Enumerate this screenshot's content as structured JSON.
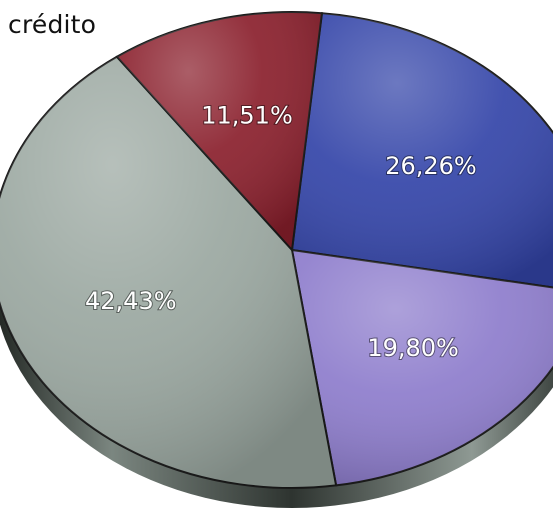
{
  "chart_data": {
    "type": "pie",
    "title": "crédito",
    "slices": [
      {
        "label": "26,26%",
        "value": 26.26,
        "color": "#3344a8"
      },
      {
        "label": "19,80%",
        "value": 19.8,
        "color": "#8d7ccc"
      },
      {
        "label": "42,43%",
        "value": 42.43,
        "color": "#9aa7a0"
      },
      {
        "label": "11,51%",
        "value": 11.51,
        "color": "#8a1f2c"
      }
    ]
  }
}
